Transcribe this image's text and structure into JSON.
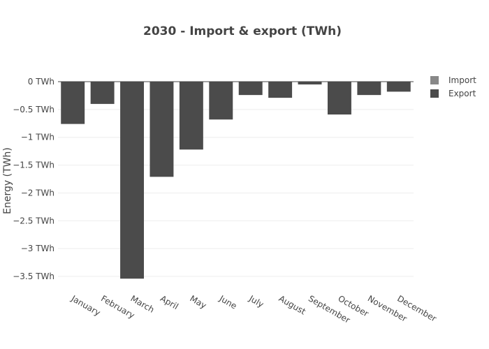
{
  "chart_data": {
    "type": "bar",
    "title": "2030 - Import & export (TWh)",
    "xlabel": "",
    "ylabel": "Energy (TWh)",
    "categories": [
      "January",
      "February",
      "March",
      "April",
      "May",
      "June",
      "July",
      "August",
      "September",
      "October",
      "November",
      "December"
    ],
    "series": [
      {
        "name": "Import",
        "color": "#888888",
        "values": [
          0,
          0,
          0,
          0,
          0,
          0,
          0,
          0,
          0,
          0,
          0,
          0
        ]
      },
      {
        "name": "Export",
        "color": "#4b4b4b",
        "values": [
          -0.76,
          -0.4,
          -3.54,
          -1.71,
          -1.22,
          -0.68,
          -0.24,
          -0.29,
          -0.05,
          -0.59,
          -0.24,
          -0.18
        ]
      }
    ],
    "ylim": [
      -3.6,
      0
    ],
    "yticks": [
      {
        "value": 0,
        "label": "0 TWh"
      },
      {
        "value": -0.5,
        "label": "−0.5 TWh"
      },
      {
        "value": -1,
        "label": "−1 TWh"
      },
      {
        "value": -1.5,
        "label": "−1.5 TWh"
      },
      {
        "value": -2,
        "label": "−2 TWh"
      },
      {
        "value": -2.5,
        "label": "−2.5 TWh"
      },
      {
        "value": -3,
        "label": "−3 TWh"
      },
      {
        "value": -3.5,
        "label": "−3.5 TWh"
      }
    ],
    "grid": true,
    "legend_position": "top-right"
  }
}
